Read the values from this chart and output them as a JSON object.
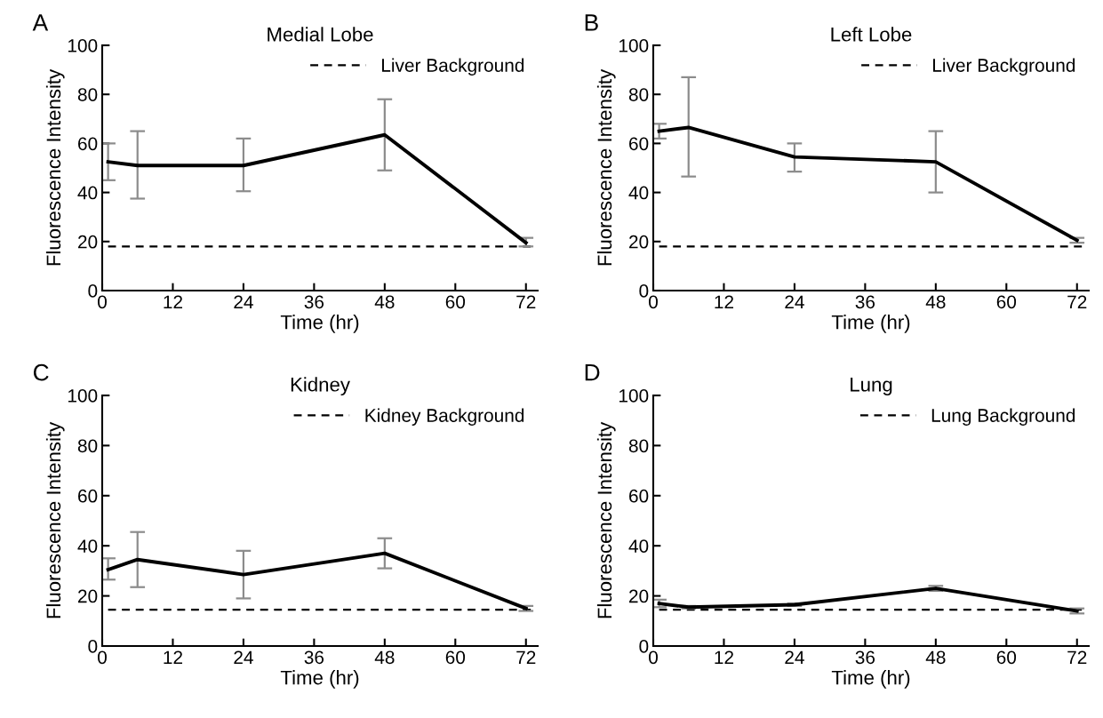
{
  "chart_data": [
    {
      "type": "line",
      "title": "Medial Lobe",
      "xlabel": "Time (hr)",
      "ylabel": "Fluorescence Intensity",
      "annotations": [
        "A"
      ],
      "x": [
        1,
        6,
        24,
        48,
        72
      ],
      "xlim": [
        0,
        74
      ],
      "xticks": [
        0,
        12,
        24,
        36,
        48,
        60,
        72
      ],
      "ylim": [
        0,
        100
      ],
      "yticks": [
        0,
        20,
        40,
        60,
        80,
        100
      ],
      "legend": "top right",
      "grid": false,
      "series": [
        {
          "color": "#000000",
          "values": [
            52.5,
            51,
            51,
            63.5,
            19.5
          ],
          "errors": [
            [
              45,
              60
            ],
            [
              37.5,
              65
            ],
            [
              40.5,
              62
            ],
            [
              49,
              78
            ],
            [
              18,
              21.5
            ]
          ]
        }
      ],
      "ref_lines": [
        {
          "axis": "y",
          "value": 18,
          "label": "Liver Background",
          "color": "#000000",
          "line_style": "dashed"
        }
      ]
    },
    {
      "type": "line",
      "title": "Left Lobe",
      "xlabel": "Time (hr)",
      "ylabel": "Fluorescence Intensity",
      "annotations": [
        "B"
      ],
      "x": [
        1,
        6,
        24,
        48,
        72
      ],
      "xlim": [
        0,
        74
      ],
      "xticks": [
        0,
        12,
        24,
        36,
        48,
        60,
        72
      ],
      "ylim": [
        0,
        100
      ],
      "yticks": [
        0,
        20,
        40,
        60,
        80,
        100
      ],
      "legend": "top right",
      "grid": false,
      "series": [
        {
          "color": "#000000",
          "values": [
            65,
            66.5,
            54.5,
            52.5,
            20.5
          ],
          "errors": [
            [
              62,
              68
            ],
            [
              46.5,
              87
            ],
            [
              48.5,
              60
            ],
            [
              40,
              65
            ],
            [
              19.5,
              21.5
            ]
          ]
        }
      ],
      "ref_lines": [
        {
          "axis": "y",
          "value": 18,
          "label": "Liver Background",
          "color": "#000000",
          "line_style": "dashed"
        }
      ]
    },
    {
      "type": "line",
      "title": "Kidney",
      "xlabel": "Time (hr)",
      "ylabel": "Fluorescence Intensity",
      "annotations": [
        "C"
      ],
      "x": [
        1,
        6,
        24,
        48,
        72
      ],
      "xlim": [
        0,
        74
      ],
      "xticks": [
        0,
        12,
        24,
        36,
        48,
        60,
        72
      ],
      "ylim": [
        0,
        100
      ],
      "yticks": [
        0,
        20,
        40,
        60,
        80,
        100
      ],
      "legend": "top right",
      "grid": false,
      "series": [
        {
          "color": "#000000",
          "values": [
            30.5,
            34.5,
            28.5,
            37,
            15
          ],
          "errors": [
            [
              26.5,
              35
            ],
            [
              23.5,
              45.5
            ],
            [
              19,
              38
            ],
            [
              31,
              43
            ],
            [
              14,
              16
            ]
          ]
        }
      ],
      "ref_lines": [
        {
          "axis": "y",
          "value": 14.5,
          "label": "Kidney Background",
          "color": "#000000",
          "line_style": "dashed"
        }
      ]
    },
    {
      "type": "line",
      "title": "Lung",
      "xlabel": "Time (hr)",
      "ylabel": "Fluorescence Intensity",
      "annotations": [
        "D"
      ],
      "x": [
        1,
        6,
        24,
        48,
        72
      ],
      "xlim": [
        0,
        74
      ],
      "xticks": [
        0,
        12,
        24,
        36,
        48,
        60,
        72
      ],
      "ylim": [
        0,
        100
      ],
      "yticks": [
        0,
        20,
        40,
        60,
        80,
        100
      ],
      "legend": "top right",
      "grid": false,
      "series": [
        {
          "color": "#000000",
          "values": [
            17,
            15.5,
            16.5,
            23,
            14
          ],
          "errors": [
            [
              15.5,
              18.5
            ],
            [
              15,
              16
            ],
            [
              16,
              17
            ],
            [
              22,
              24
            ],
            [
              13,
              15
            ]
          ]
        }
      ],
      "ref_lines": [
        {
          "axis": "y",
          "value": 14.5,
          "label": "Lung Background",
          "color": "#000000",
          "line_style": "dashed"
        }
      ]
    }
  ]
}
